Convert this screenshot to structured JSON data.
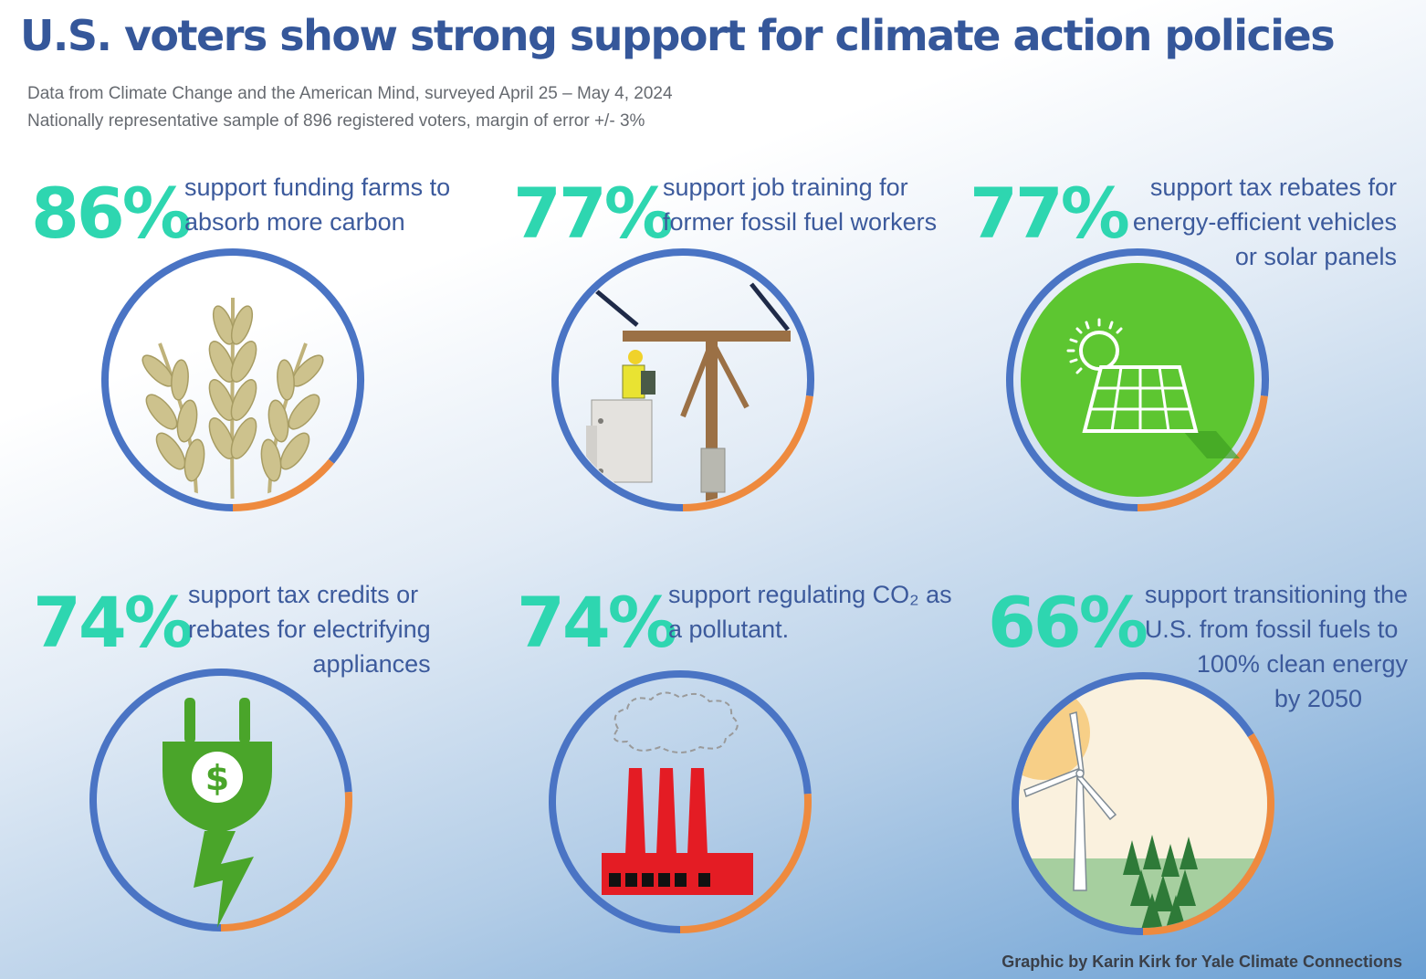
{
  "title": "U.S. voters show strong support for climate action policies",
  "subtitle_line1": "Data from Climate Change and the American Mind, surveyed  April 25 – May 4, 2024",
  "subtitle_line2": "Nationally representative sample of 896 registered voters, margin of error +/- 3%",
  "credit": "Graphic by Karin Kirk for Yale Climate Connections",
  "colors": {
    "title": "#35579a",
    "percent": "#2ed6b0",
    "support_arc": "#4a74c4",
    "remainder_arc": "#ee8a3e"
  },
  "chart_data": {
    "type": "pie",
    "unit": "%",
    "items": [
      {
        "value": 86,
        "label": "86%",
        "icon": "wheat-icon",
        "lines": [
          "support funding farms to",
          "absorb more carbon"
        ]
      },
      {
        "value": 77,
        "label": "77%",
        "icon": "utility-worker-icon",
        "lines": [
          "support job training for",
          "former fossil fuel workers"
        ]
      },
      {
        "value": 77,
        "label": "77%",
        "icon": "solar-panel-icon",
        "lines": [
          "support tax rebates for",
          "energy-efficient vehicles",
          "or solar panels"
        ]
      },
      {
        "value": 74,
        "label": "74%",
        "icon": "electric-plug-icon",
        "lines": [
          "support tax credits or",
          "rebates for electrifying",
          "appliances"
        ]
      },
      {
        "value": 74,
        "label": "74%",
        "icon": "factory-icon",
        "lines": [
          "support regulating CO₂ as",
          "a pollutant."
        ]
      },
      {
        "value": 66,
        "label": "66%",
        "icon": "wind-turbine-icon",
        "lines": [
          "support  transitioning the",
          "U.S. from fossil fuels to",
          "100% clean energy",
          "by 2050"
        ]
      }
    ]
  }
}
